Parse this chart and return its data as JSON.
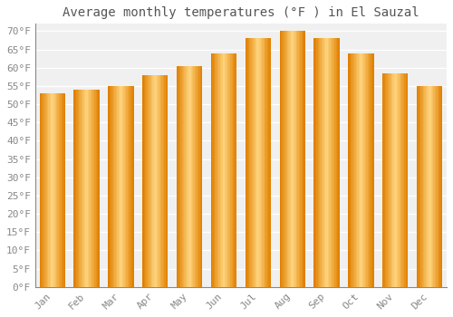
{
  "title": "Average monthly temperatures (°F ) in El Sauzal",
  "months": [
    "Jan",
    "Feb",
    "Mar",
    "Apr",
    "May",
    "Jun",
    "Jul",
    "Aug",
    "Sep",
    "Oct",
    "Nov",
    "Dec"
  ],
  "values": [
    53.0,
    54.0,
    55.0,
    58.0,
    60.5,
    64.0,
    68.0,
    70.0,
    68.0,
    64.0,
    58.5,
    55.0
  ],
  "bar_color_main": "#FFA500",
  "bar_color_light": "#FFD580",
  "bar_color_dark": "#E08000",
  "background_color": "#FFFFFF",
  "plot_bg_color": "#F0F0F0",
  "grid_color": "#FFFFFF",
  "ylim": [
    0,
    72
  ],
  "ytick_step": 5,
  "title_fontsize": 10,
  "tick_fontsize": 8,
  "font_family": "monospace",
  "tick_color": "#888888",
  "title_color": "#555555"
}
